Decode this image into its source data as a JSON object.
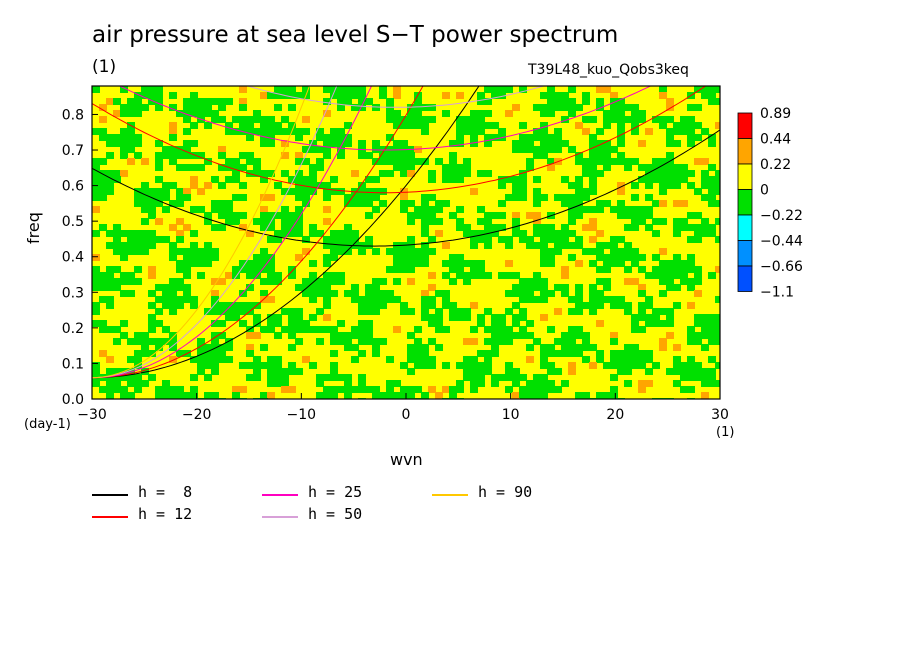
{
  "chart_data": {
    "type": "heatmap",
    "title": "air pressure at sea level S−T power spectrum",
    "subtitle_left": "(1)",
    "subtitle_right": "T39L48_kuo_Qobs3keq",
    "xlabel": "wvn",
    "ylabel": "freq",
    "x_unit_left": "(day-1)",
    "x_unit_right": "(1)",
    "xlim": [
      -30,
      30
    ],
    "ylim": [
      0.0,
      0.88
    ],
    "x_ticks": [
      -30,
      -20,
      -10,
      0,
      10,
      20,
      30
    ],
    "x_tick_labels": [
      "−30",
      "−20",
      "−10",
      "0",
      "10",
      "20",
      "30"
    ],
    "y_ticks": [
      0.0,
      0.1,
      0.2,
      0.3,
      0.4,
      0.5,
      0.6,
      0.7,
      0.8
    ],
    "y_tick_labels": [
      "0.0",
      "0.1",
      "0.2",
      "0.3",
      "0.4",
      "0.5",
      "0.6",
      "0.7",
      "0.8"
    ],
    "colorbar": {
      "labels": [
        "0.89",
        "0.44",
        "0.22",
        "0",
        "−0.22",
        "−0.44",
        "−0.66",
        "−1.1"
      ],
      "colors": [
        "#ff0000",
        "#ffa500",
        "#ffff00",
        "#00e000",
        "#00ffff",
        "#0090ff",
        "#0050ff"
      ]
    },
    "dispersion_curves": [
      {
        "label": "h =  8",
        "color": "#000000"
      },
      {
        "label": "h = 12",
        "color": "#ff0000"
      },
      {
        "label": "h = 25",
        "color": "#ff00c0"
      },
      {
        "label": "h = 50",
        "color": "#d8a0d8"
      },
      {
        "label": "h = 90",
        "color": "#ffc800"
      }
    ]
  }
}
